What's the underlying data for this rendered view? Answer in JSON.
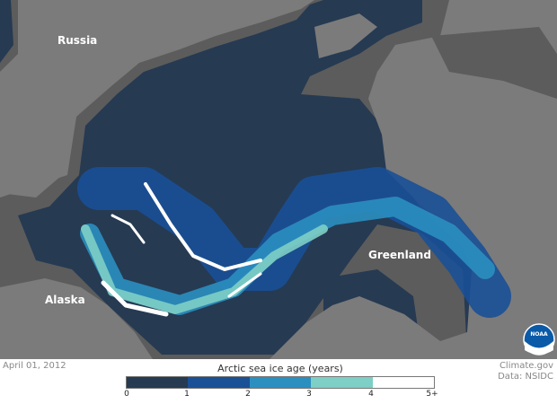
{
  "map": {
    "labels": {
      "russia": "Russia",
      "alaska": "Alaska",
      "greenland": "Greenland"
    },
    "colors": {
      "land": "#7b7b7b",
      "coast": "#5c5c5c",
      "ocean": "#263a52"
    },
    "logo": "NOAA"
  },
  "footer": {
    "date": "April 01, 2012",
    "credit_line1": "Climate.gov",
    "credit_line2": "Data: NSIDC"
  },
  "legend": {
    "title": "Arctic sea ice age (years)",
    "ticks": [
      "0",
      "1",
      "2",
      "3",
      "4",
      "5+"
    ],
    "colors": [
      "#263a52",
      "#1a5096",
      "#2b8fc0",
      "#7ecfc5",
      "#ffffff"
    ]
  }
}
